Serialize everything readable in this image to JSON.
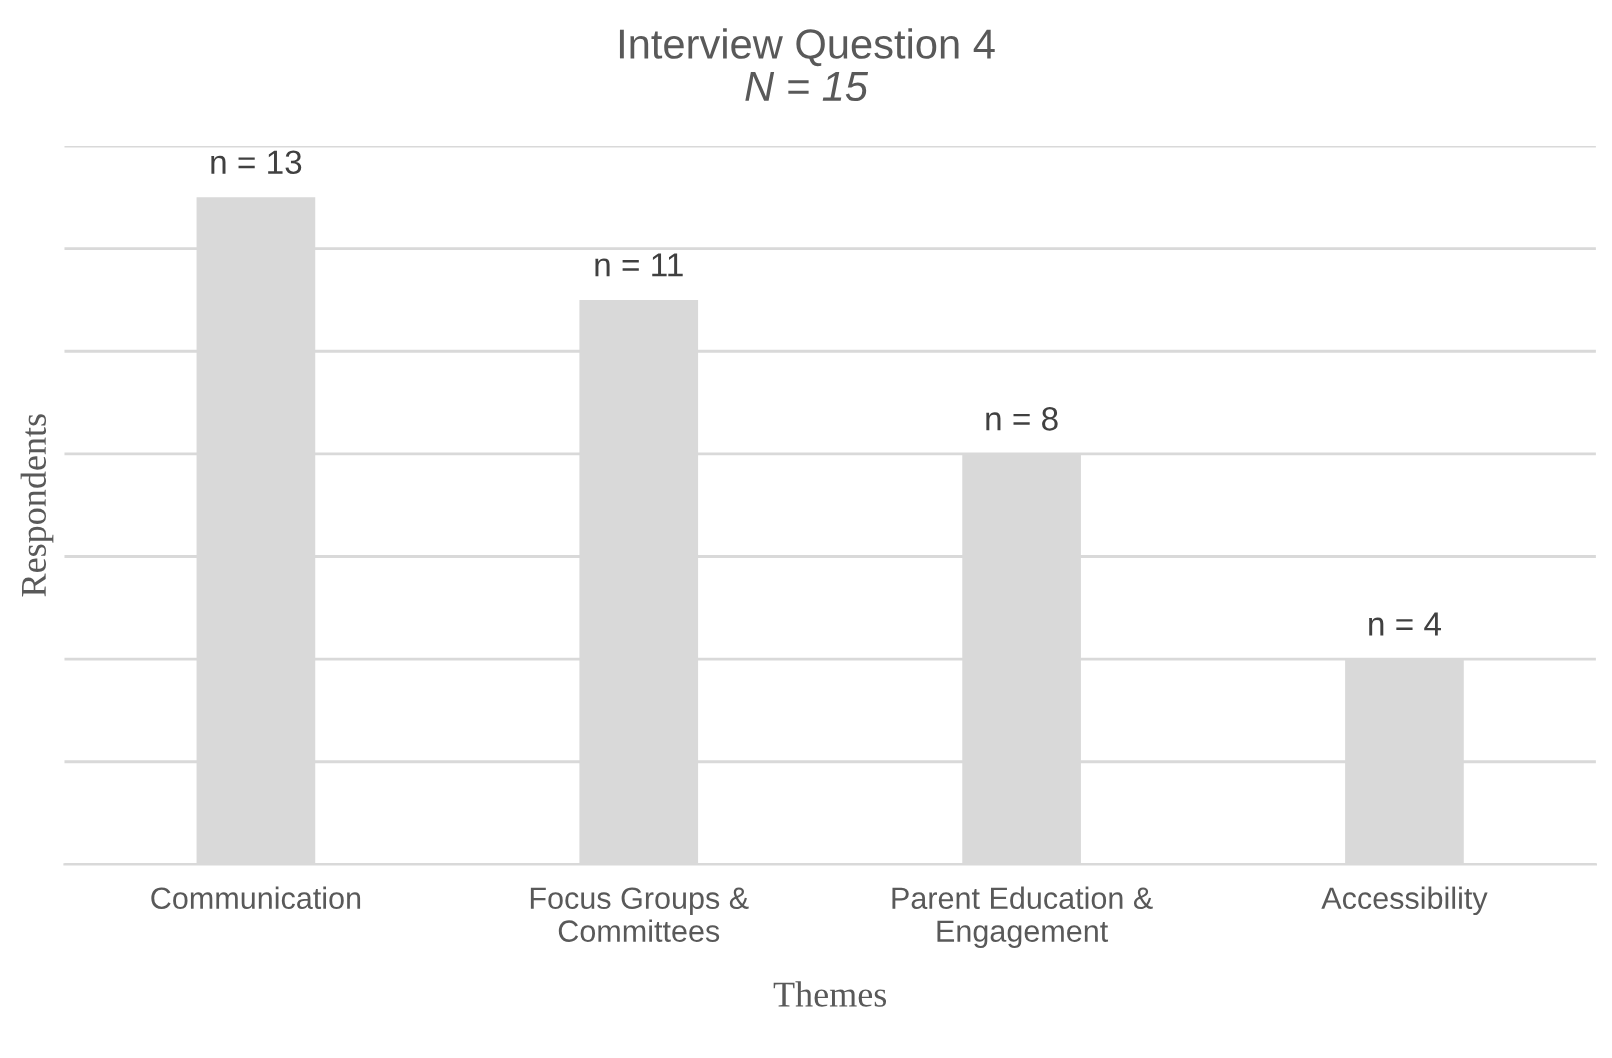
{
  "chart_data": {
    "type": "bar",
    "title": "Interview Question 4",
    "subtitle": "N = 15",
    "xlabel": "Themes",
    "ylabel": "Respondents",
    "categories": [
      "Communication",
      "Focus Groups &\nCommittees",
      "Parent Education &\nEngagement",
      "Accessibility"
    ],
    "values": [
      13,
      11,
      8,
      4
    ],
    "color": "#d9d9d9",
    "value_labels": [
      "n = 13",
      "n = 11",
      "n = 8",
      "n = 4"
    ],
    "ylim": [
      0,
      14
    ],
    "yticks": [
      {
        "value": 0,
        "label": null
      },
      {
        "value": 2,
        "label": null
      },
      {
        "value": 4,
        "label": null
      },
      {
        "value": 6,
        "label": null
      },
      {
        "value": 8,
        "label": null
      },
      {
        "value": 10,
        "label": null
      },
      {
        "value": 12,
        "label": null
      },
      {
        "value": 14,
        "label": null
      }
    ],
    "grid": "y",
    "tick_labels": "x",
    "legend": false
  }
}
